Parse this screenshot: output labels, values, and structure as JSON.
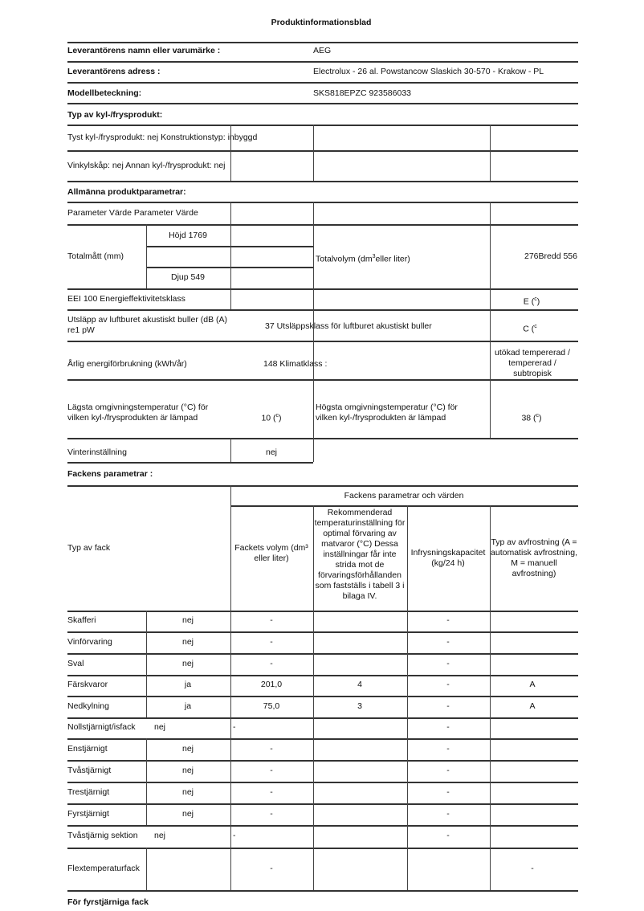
{
  "title": "Produktinformationsblad",
  "supplier": {
    "name_label": "Leverantörens namn eller varumärke :",
    "name": "AEG",
    "address_label": "Leverantörens adress :",
    "address": "Electrolux - 26 al. Powstancow Slaskich 30-570 - Krakow - PL",
    "model_label": "Modellbeteckning:",
    "model": "SKS818EPZC 923586033"
  },
  "type_section": {
    "heading": "Typ av kyl-/frysprodukt:",
    "row1": "Tyst kyl-/frysprodukt: nej Konstruktionstyp: inbyggd",
    "row2": "Vinkylskåp: nej Annan kyl-/frysprodukt: nej"
  },
  "general": {
    "heading": "Allmänna produktparametrar:",
    "param_header": "Parameter Värde Parameter Värde",
    "dims_label": "Totalmått (mm)",
    "height": "Höjd 1769",
    "depth": "Djup 549",
    "volume_label": "Totalvolym (dm",
    "volume_label_sup": "3",
    "volume_label_end": "eller liter)",
    "volume_width": "276Bredd 556",
    "eei": "EEI 100 Energieffektivitetsklass",
    "energy_class": "E (",
    "energy_class_sup": "c",
    "noise_label": "Utsläpp av luftburet akustiskt buller (dB (A) re1 pW",
    "noise_value": "37 Utsläppsklass för luftburet akustiskt buller",
    "noise_class": "C (",
    "noise_class_sup": "c",
    "annual_label": "Årlig energiförbrukning (kWh/år)",
    "annual_value": "148 Klimatklass :",
    "climate_class": "utökad tempererad / tempererad / subtropisk",
    "min_temp_label": "Lägsta omgivningstemperatur (°C) för vilken kyl-/frysprodukten är lämpad",
    "min_temp": "10 (",
    "min_temp_sup": "c",
    "max_temp_label": "Högsta omgivningstemperatur (°C) för vilken kyl-/frysprodukten är lämpad",
    "max_temp": "38 (",
    "max_temp_sup": "c",
    "winter_label": "Vinterinställning",
    "winter_value": "nej"
  },
  "compartments": {
    "heading": "Fackens parametrar :",
    "group_header": "Fackens parametrar och värden",
    "type_header": "Typ av fack",
    "volume_header": "Fackets volym (dm³ eller liter)",
    "temp_header": "Rekommenderad temperaturinställning för optimal förvaring av matvaror (°C) Dessa inställningar får inte strida mot de förvaringsförhållanden som fastställs i tabell 3 i bilaga IV.",
    "freeze_header": "Infrysningskapacitet (kg/24 h)",
    "defrost_header": "Typ av avfrostning (A = automatisk avfrostning, M = manuell avfrostning)",
    "rows": [
      {
        "name": "Skafferi",
        "present": "nej",
        "volume": "-",
        "temp": "",
        "freeze": "-",
        "defrost": ""
      },
      {
        "name": "Vinförvaring",
        "present": "nej",
        "volume": "-",
        "temp": "",
        "freeze": "-",
        "defrost": ""
      },
      {
        "name": "Sval",
        "present": "nej",
        "volume": "-",
        "temp": "",
        "freeze": "-",
        "defrost": ""
      },
      {
        "name": "Färskvaror",
        "present": "ja",
        "volume": "201,0",
        "temp": "4",
        "freeze": "-",
        "defrost": "A"
      },
      {
        "name": "Nedkylning",
        "present": "ja",
        "volume": "75,0",
        "temp": "3",
        "freeze": "-",
        "defrost": "A"
      },
      {
        "name": "Nollstjärnigt/isfack",
        "present": "nej",
        "volume": "-",
        "temp": "",
        "freeze": "-",
        "defrost": ""
      },
      {
        "name": "Enstjärnigt",
        "present": "nej",
        "volume": "-",
        "temp": "",
        "freeze": "-",
        "defrost": ""
      },
      {
        "name": "Tvåstjärnigt",
        "present": "nej",
        "volume": "-",
        "temp": "",
        "freeze": "-",
        "defrost": ""
      },
      {
        "name": "Trestjärnigt",
        "present": "nej",
        "volume": "-",
        "temp": "",
        "freeze": "-",
        "defrost": ""
      },
      {
        "name": "Fyrstjärnigt",
        "present": "nej",
        "volume": "-",
        "temp": "",
        "freeze": "-",
        "defrost": ""
      },
      {
        "name": "Tvåstjärnig sektion",
        "present": "nej",
        "volume": "-",
        "temp": "",
        "freeze": "-",
        "defrost": ""
      },
      {
        "name": "Flextemperaturfack",
        "present": "",
        "volume": "-",
        "temp": "",
        "freeze": "",
        "defrost": "-"
      }
    ]
  },
  "footer_heading": "För fyrstjärniga fack"
}
